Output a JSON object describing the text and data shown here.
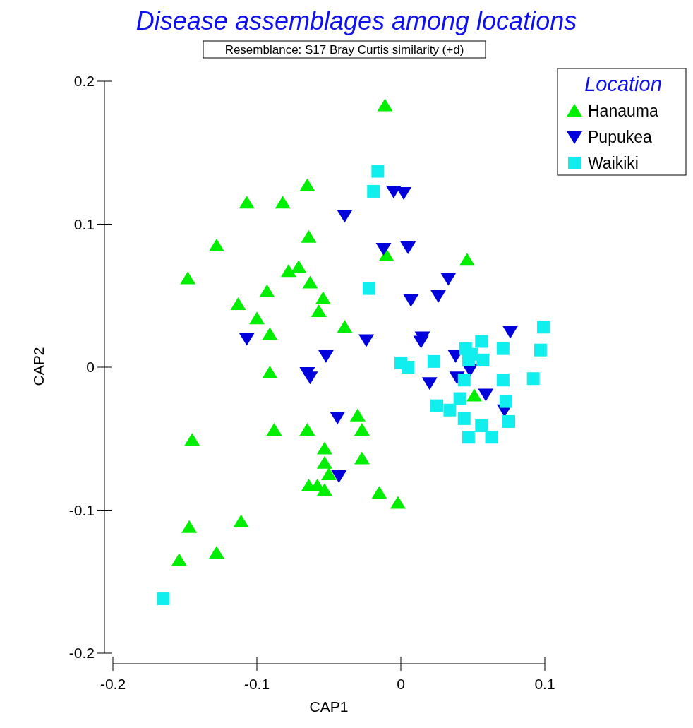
{
  "chart_data": {
    "type": "scatter",
    "title": "Disease assemblages among locations",
    "subtitle": "Resemblance: S17 Bray Curtis similarity (+d)",
    "xlabel": "CAP1",
    "ylabel": "CAP2",
    "legend_title": "Location",
    "legend": "top right",
    "grid": false,
    "xlim": [
      -0.2,
      0.1
    ],
    "ylim": [
      -0.2,
      0.2
    ],
    "xticks": [
      -0.2,
      -0.1,
      0,
      0.1
    ],
    "yticks": [
      -0.2,
      -0.1,
      0,
      0.1,
      0.2
    ],
    "series": [
      {
        "name": "Hanauma",
        "color": "#00ee00",
        "marker": "triangle",
        "x": [
          -0.011,
          -0.065,
          -0.107,
          -0.082,
          -0.064,
          -0.128,
          -0.01,
          0.046,
          -0.148,
          -0.071,
          -0.078,
          -0.063,
          -0.093,
          -0.113,
          -0.054,
          -0.057,
          -0.1,
          -0.039,
          -0.091,
          -0.091,
          -0.145,
          -0.088,
          -0.065,
          -0.03,
          -0.027,
          -0.053,
          -0.027,
          -0.053,
          -0.05,
          -0.064,
          -0.058,
          -0.053,
          -0.015,
          -0.002,
          -0.147,
          -0.111,
          -0.128,
          -0.154,
          0.051
        ],
        "values": [
          0.183,
          0.127,
          0.115,
          0.115,
          0.091,
          0.085,
          0.078,
          0.075,
          0.062,
          0.07,
          0.067,
          0.059,
          0.053,
          0.044,
          0.048,
          0.039,
          0.034,
          0.028,
          0.023,
          -0.004,
          -0.051,
          -0.044,
          -0.044,
          -0.034,
          -0.044,
          -0.057,
          -0.064,
          -0.067,
          -0.075,
          -0.083,
          -0.083,
          -0.086,
          -0.088,
          -0.095,
          -0.112,
          -0.108,
          -0.13,
          -0.135,
          -0.02
        ]
      },
      {
        "name": "Pupukea",
        "color": "#0000dd",
        "marker": "triangle-down",
        "x": [
          -0.005,
          0.002,
          -0.039,
          -0.012,
          0.005,
          0.033,
          0.026,
          0.007,
          -0.107,
          -0.024,
          -0.052,
          -0.065,
          -0.063,
          -0.044,
          -0.043,
          0.015,
          0.014,
          0.076,
          0.038,
          0.02,
          0.039,
          0.048,
          0.059,
          0.072
        ],
        "values": [
          0.123,
          0.122,
          0.106,
          0.083,
          0.084,
          0.062,
          0.05,
          0.047,
          0.02,
          0.019,
          0.008,
          -0.004,
          -0.007,
          -0.035,
          -0.076,
          0.021,
          0.018,
          0.025,
          0.008,
          -0.011,
          -0.007,
          -0.002,
          -0.019,
          -0.03
        ]
      },
      {
        "name": "Waikiki",
        "color": "#11eeee",
        "marker": "square",
        "x": [
          -0.016,
          -0.019,
          -0.022,
          -0.165,
          0.099,
          0.097,
          0.056,
          0.071,
          0.045,
          0.047,
          0.057,
          0.049,
          0.023,
          0.0,
          0.005,
          0.044,
          0.071,
          0.092,
          0.073,
          0.041,
          0.025,
          0.034,
          0.044,
          0.056,
          0.075,
          0.047,
          0.063
        ],
        "values": [
          0.137,
          0.123,
          0.055,
          -0.162,
          0.028,
          0.012,
          0.018,
          0.013,
          0.013,
          0.005,
          0.005,
          0.009,
          0.004,
          0.003,
          0.0,
          -0.009,
          -0.009,
          -0.008,
          -0.024,
          -0.022,
          -0.027,
          -0.03,
          -0.036,
          -0.041,
          -0.038,
          -0.049,
          -0.049
        ]
      }
    ]
  }
}
